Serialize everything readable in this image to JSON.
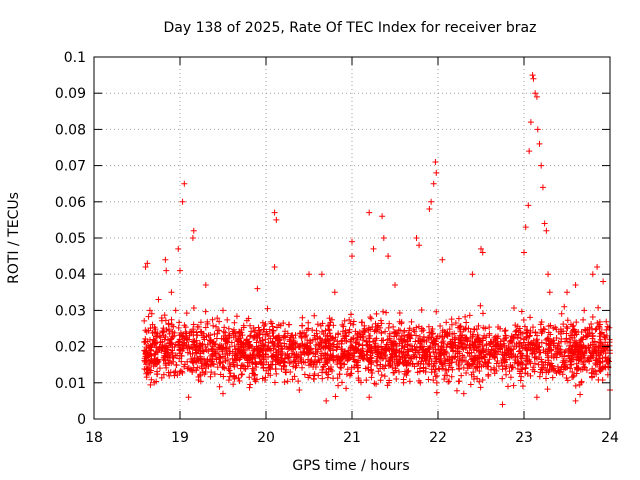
{
  "chart_data": {
    "type": "scatter",
    "title": "Day 138 of 2025, Rate Of TEC Index for receiver braz",
    "xlabel": "GPS time / hours",
    "ylabel": "ROTI / TECUs",
    "xlim": [
      18,
      24
    ],
    "ylim": [
      0,
      0.1
    ],
    "x_ticks": [
      18,
      19,
      20,
      21,
      22,
      23,
      24
    ],
    "x_tick_labels": [
      "18",
      "19",
      "20",
      "21",
      "22",
      "23",
      "24"
    ],
    "y_ticks": [
      0,
      0.01,
      0.02,
      0.03,
      0.04,
      0.05,
      0.06,
      0.07,
      0.08,
      0.09,
      0.1
    ],
    "y_tick_labels": [
      "0",
      "0.01",
      "0.02",
      "0.03",
      "0.04",
      "0.05",
      "0.06",
      "0.07",
      "0.08",
      "0.09",
      "0.1"
    ],
    "grid": true,
    "grid_style": "dotted",
    "marker": "+",
    "series": [
      {
        "name": "ROTI",
        "color": "#ff0000",
        "x_start": 18.58,
        "x_end": 24.0,
        "typical_range": [
          0.008,
          0.03
        ],
        "points": [
          [
            18.6,
            0.042
          ],
          [
            18.62,
            0.043
          ],
          [
            18.65,
            0.03
          ],
          [
            18.7,
            0.024
          ],
          [
            18.75,
            0.033
          ],
          [
            18.83,
            0.044
          ],
          [
            18.84,
            0.041
          ],
          [
            18.9,
            0.035
          ],
          [
            18.95,
            0.03
          ],
          [
            18.98,
            0.047
          ],
          [
            19.0,
            0.041
          ],
          [
            19.05,
            0.065
          ],
          [
            19.03,
            0.06
          ],
          [
            19.15,
            0.05
          ],
          [
            19.16,
            0.052
          ],
          [
            19.3,
            0.037
          ],
          [
            19.5,
            0.03
          ],
          [
            19.9,
            0.036
          ],
          [
            20.1,
            0.057
          ],
          [
            20.12,
            0.055
          ],
          [
            20.1,
            0.042
          ],
          [
            20.5,
            0.04
          ],
          [
            20.65,
            0.04
          ],
          [
            20.8,
            0.035
          ],
          [
            21.0,
            0.049
          ],
          [
            21.0,
            0.045
          ],
          [
            21.2,
            0.057
          ],
          [
            21.25,
            0.047
          ],
          [
            21.35,
            0.056
          ],
          [
            21.37,
            0.05
          ],
          [
            21.42,
            0.045
          ],
          [
            21.5,
            0.037
          ],
          [
            21.75,
            0.05
          ],
          [
            21.78,
            0.048
          ],
          [
            21.9,
            0.058
          ],
          [
            21.92,
            0.06
          ],
          [
            21.95,
            0.065
          ],
          [
            21.97,
            0.071
          ],
          [
            21.98,
            0.068
          ],
          [
            22.05,
            0.044
          ],
          [
            22.4,
            0.04
          ],
          [
            22.5,
            0.047
          ],
          [
            22.52,
            0.046
          ],
          [
            23.0,
            0.046
          ],
          [
            23.02,
            0.053
          ],
          [
            23.05,
            0.059
          ],
          [
            23.06,
            0.074
          ],
          [
            23.08,
            0.082
          ],
          [
            23.1,
            0.095
          ],
          [
            23.11,
            0.094
          ],
          [
            23.13,
            0.09
          ],
          [
            23.15,
            0.089
          ],
          [
            23.16,
            0.08
          ],
          [
            23.18,
            0.076
          ],
          [
            23.2,
            0.07
          ],
          [
            23.22,
            0.064
          ],
          [
            23.24,
            0.054
          ],
          [
            23.26,
            0.052
          ],
          [
            23.28,
            0.04
          ],
          [
            23.3,
            0.035
          ],
          [
            23.5,
            0.035
          ],
          [
            23.6,
            0.037
          ],
          [
            23.7,
            0.03
          ],
          [
            23.8,
            0.04
          ],
          [
            23.85,
            0.042
          ],
          [
            23.92,
            0.038
          ],
          [
            18.7,
            0.01
          ],
          [
            19.1,
            0.006
          ],
          [
            19.5,
            0.007
          ],
          [
            20.7,
            0.005
          ],
          [
            21.2,
            0.006
          ],
          [
            21.6,
            0.01
          ],
          [
            22.3,
            0.007
          ],
          [
            22.75,
            0.004
          ],
          [
            23.15,
            0.006
          ],
          [
            23.6,
            0.005
          ],
          [
            24.0,
            0.008
          ]
        ]
      }
    ]
  }
}
